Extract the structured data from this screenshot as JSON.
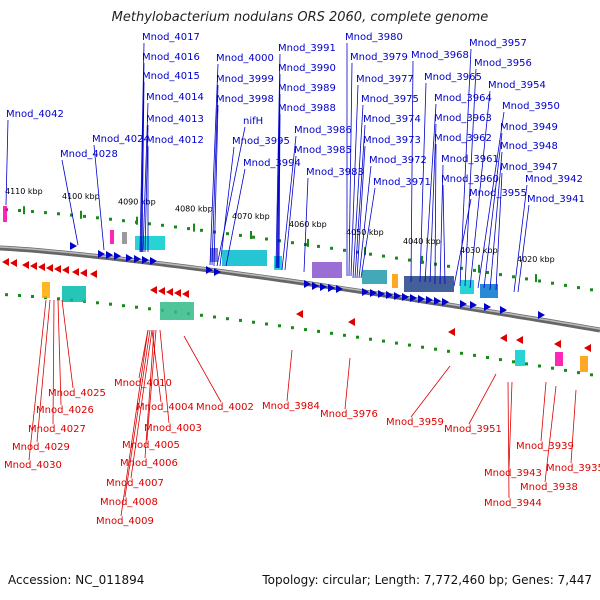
{
  "title": "Methylobacterium nodulans ORS 2060, complete genome",
  "footer": {
    "accession": "Accession: NC_011894",
    "summary": "Topology: circular; Length: 7,772,460 bp; Genes: 7,447"
  },
  "colors": {
    "forward": "#0000cc",
    "reverse": "#dd0000",
    "backbone": "#888888",
    "tick": "#1a8a1a"
  },
  "ruler_labels": [
    "4110 kbp",
    "4100 kbp",
    "4090 kbp",
    "4080 kbp",
    "4070 kbp",
    "4060 kbp",
    "4050 kbp",
    "4040 kbp",
    "4030 kbp",
    "4020 kbp"
  ],
  "forward_genes": [
    "Mnod_4042",
    "Mnod_4028",
    "Mnod_4024",
    "Mnod_4017",
    "Mnod_4016",
    "Mnod_4015",
    "Mnod_4014",
    "Mnod_4013",
    "Mnod_4012",
    "Mnod_4000",
    "Mnod_3999",
    "Mnod_3998",
    "nifH",
    "Mnod_3995",
    "Mnod_3994",
    "Mnod_3991",
    "Mnod_3990",
    "Mnod_3989",
    "Mnod_3988",
    "Mnod_3986",
    "Mnod_3985",
    "Mnod_3983",
    "Mnod_3980",
    "Mnod_3979",
    "Mnod_3977",
    "Mnod_3975",
    "Mnod_3974",
    "Mnod_3973",
    "Mnod_3972",
    "Mnod_3971",
    "Mnod_3968",
    "Mnod_3965",
    "Mnod_3964",
    "Mnod_3963",
    "Mnod_3962",
    "Mnod_3961",
    "Mnod_3960",
    "Mnod_3955",
    "Mnod_3957",
    "Mnod_3956",
    "Mnod_3954",
    "Mnod_3950",
    "Mnod_3949",
    "Mnod_3948",
    "Mnod_3947",
    "Mnod_3942",
    "Mnod_3941"
  ],
  "reverse_genes": [
    "Mnod_4025",
    "Mnod_4026",
    "Mnod_4027",
    "Mnod_4029",
    "Mnod_4030",
    "Mnod_4010",
    "Mnod_4004",
    "Mnod_4003",
    "Mnod_4005",
    "Mnod_4006",
    "Mnod_4007",
    "Mnod_4008",
    "Mnod_4009",
    "Mnod_4002",
    "Mnod_3984",
    "Mnod_3976",
    "Mnod_3959",
    "Mnod_3951",
    "Mnod_3943",
    "Mnod_3944",
    "Mnod_3939",
    "Mnod_3938",
    "Mnod_3935"
  ]
}
